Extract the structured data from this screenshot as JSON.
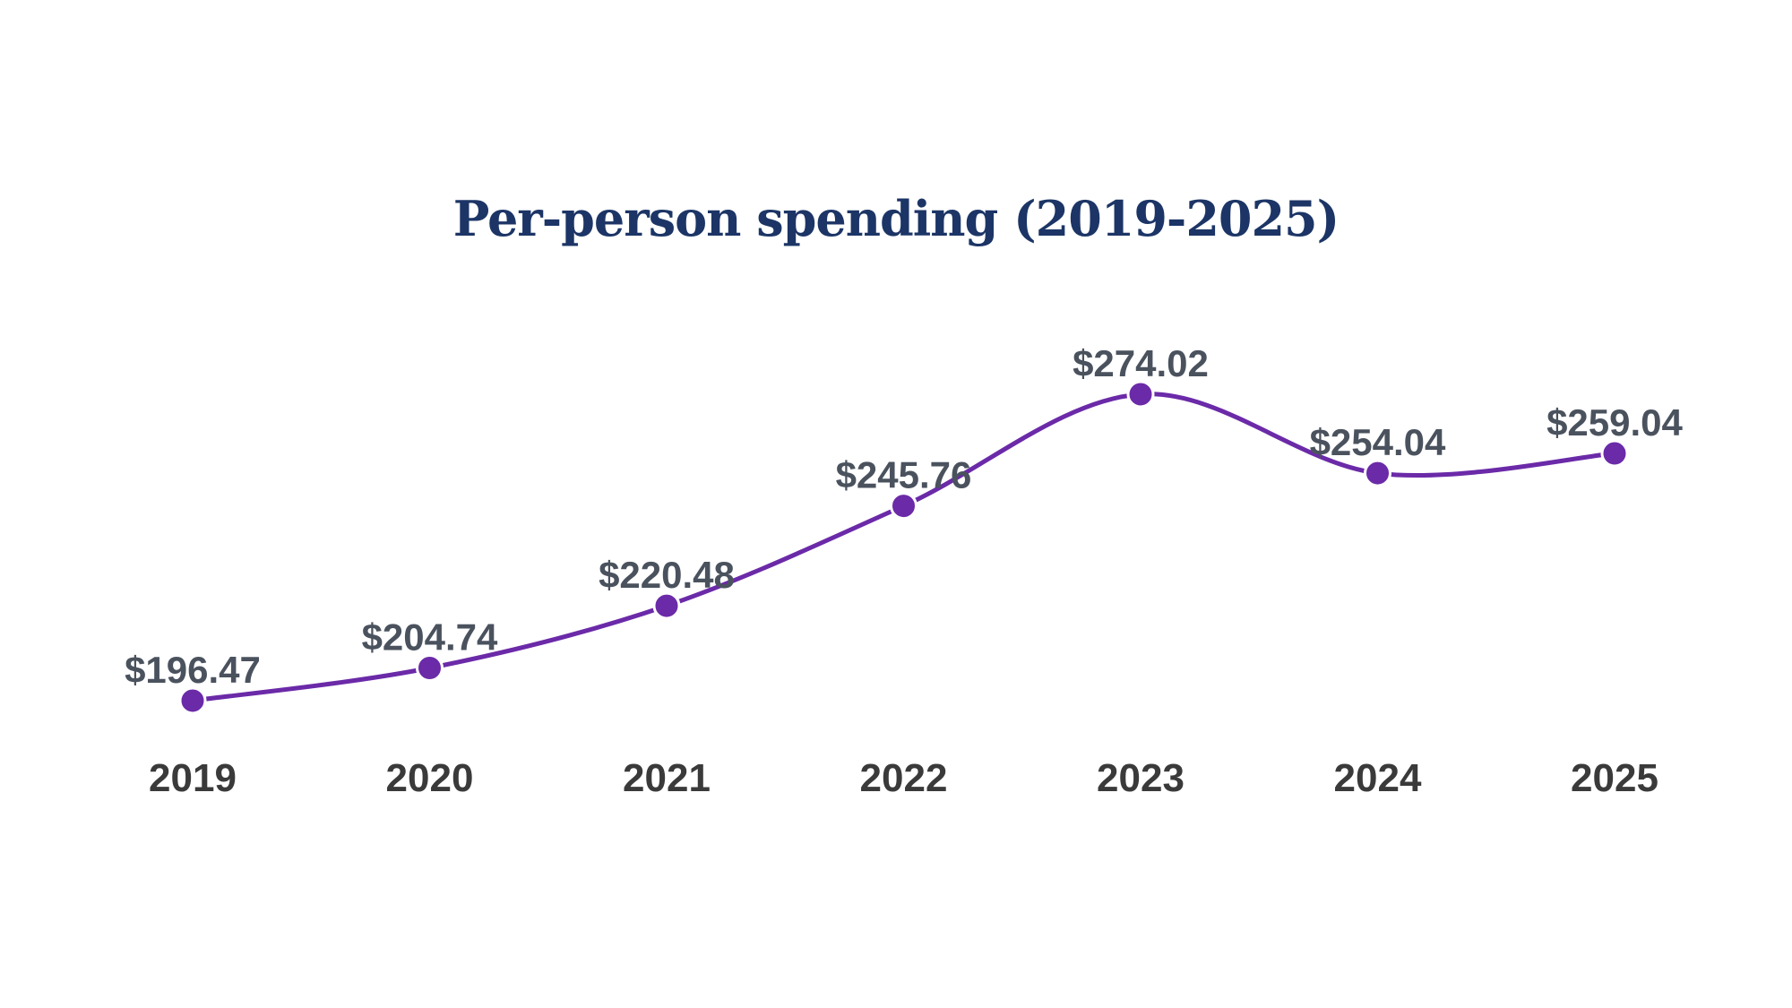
{
  "chart_data": {
    "type": "line",
    "title": "Per-person spending (2019-2025)",
    "xlabel": "",
    "ylabel": "",
    "categories": [
      "2019",
      "2020",
      "2021",
      "2022",
      "2023",
      "2024",
      "2025"
    ],
    "values": [
      196.47,
      204.74,
      220.48,
      245.76,
      274.02,
      254.04,
      259.04
    ],
    "data_labels": [
      "$196.47",
      "$204.74",
      "$220.48",
      "$245.76",
      "$274.02",
      "$254.04",
      "$259.04"
    ],
    "ylim": [
      180,
      290
    ],
    "grid": false,
    "legend": "none",
    "line_color": "#6b2aa8",
    "smooth": true
  }
}
